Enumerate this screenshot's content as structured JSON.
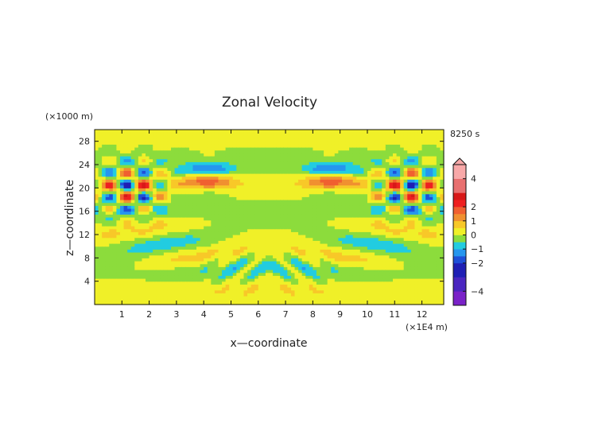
{
  "chart_data": {
    "type": "heatmap",
    "title": "Zonal Velocity",
    "xlabel": "x—coordinate",
    "ylabel": "z—coordinate",
    "x_unit": "(×1E4 m)",
    "y_unit": "(×1000 m)",
    "time_label": "8250 s",
    "x_ticks": [
      1,
      2,
      3,
      4,
      5,
      6,
      7,
      8,
      9,
      10,
      11,
      12
    ],
    "y_ticks": [
      4,
      8,
      12,
      16,
      20,
      24,
      28
    ],
    "xlim": [
      0,
      12.8
    ],
    "ylim": [
      0,
      30
    ],
    "colorbar": {
      "tick_labels": [
        "4",
        "2",
        "1",
        "0",
        "−1",
        "−2",
        "−4"
      ],
      "tick_values": [
        4,
        2,
        1,
        0,
        -1,
        -2,
        -4
      ],
      "range": [
        -5,
        5
      ],
      "extend": "max",
      "levels": [
        {
          "lo": -5.0,
          "hi": -4.0,
          "color": "#7a22c8"
        },
        {
          "lo": -4.0,
          "hi": -3.0,
          "color": "#4a26c0"
        },
        {
          "lo": -3.0,
          "hi": -2.0,
          "color": "#1f1fb4"
        },
        {
          "lo": -2.0,
          "hi": -1.5,
          "color": "#1e50d8"
        },
        {
          "lo": -1.5,
          "hi": -1.0,
          "color": "#2696ee"
        },
        {
          "lo": -1.0,
          "hi": -0.5,
          "color": "#22cce0"
        },
        {
          "lo": -0.5,
          "hi": 0.0,
          "color": "#8cdc3c"
        },
        {
          "lo": 0.0,
          "hi": 0.5,
          "color": "#f0f028"
        },
        {
          "lo": 0.5,
          "hi": 1.0,
          "color": "#f8c828"
        },
        {
          "lo": 1.0,
          "hi": 1.5,
          "color": "#f09030"
        },
        {
          "lo": 1.5,
          "hi": 2.0,
          "color": "#f06030"
        },
        {
          "lo": 2.0,
          "hi": 2.5,
          "color": "#ee2020"
        },
        {
          "lo": 2.5,
          "hi": 3.0,
          "color": "#d81818"
        },
        {
          "lo": 3.0,
          "hi": 4.0,
          "color": "#e87070"
        },
        {
          "lo": 4.0,
          "hi": 5.0,
          "color": "#f8a8a8"
        }
      ]
    }
  }
}
